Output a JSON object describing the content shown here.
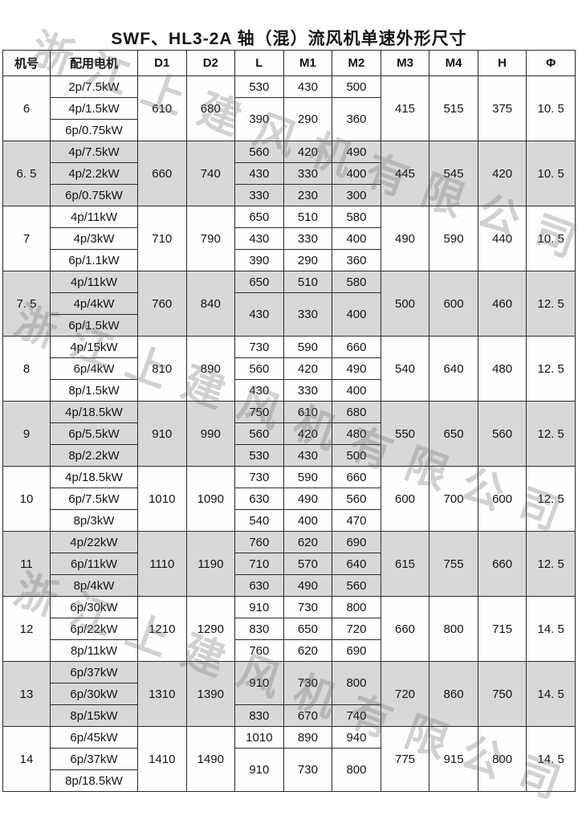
{
  "title": "SWF、HL3-2A 轴（混）流风机单速外形尺寸",
  "watermark": {
    "text": "浙江上建风机有限公司",
    "color": "#bdbdbd"
  },
  "colors": {
    "shaded_row": "#d8d8d8",
    "border": "#2b2b2b",
    "background": "#ffffff"
  },
  "table": {
    "headers": [
      "机号",
      "配用电机",
      "D1",
      "D2",
      "L",
      "M1",
      "M2",
      "M3",
      "M4",
      "H",
      "Φ"
    ],
    "groups": [
      {
        "model": "6",
        "shaded": false,
        "motors": [
          "2p/7.5kW",
          "4p/1.5kW",
          "6p/0.75kW"
        ],
        "d1": "610",
        "d2": "680",
        "lm_rows": [
          {
            "span": 1,
            "l": "530",
            "m1": "430",
            "m2": "500"
          },
          {
            "span": 2,
            "l": "390",
            "m1": "290",
            "m2": "360"
          }
        ],
        "m3": "415",
        "m4": "515",
        "h": "375",
        "phi": "10. 5"
      },
      {
        "model": "6. 5",
        "shaded": true,
        "motors": [
          "4p/7.5kW",
          "4p/2.2kW",
          "6p/0.75kW"
        ],
        "d1": "660",
        "d2": "740",
        "lm_rows": [
          {
            "span": 1,
            "l": "560",
            "m1": "420",
            "m2": "490"
          },
          {
            "span": 1,
            "l": "430",
            "m1": "330",
            "m2": "400"
          },
          {
            "span": 1,
            "l": "330",
            "m1": "230",
            "m2": "300"
          }
        ],
        "m3": "445",
        "m4": "545",
        "h": "420",
        "phi": "10. 5"
      },
      {
        "model": "7",
        "shaded": false,
        "motors": [
          "4p/11kW",
          "4p/3kW",
          "6p/1.1kW"
        ],
        "d1": "710",
        "d2": "790",
        "lm_rows": [
          {
            "span": 1,
            "l": "650",
            "m1": "510",
            "m2": "580"
          },
          {
            "span": 1,
            "l": "430",
            "m1": "330",
            "m2": "400"
          },
          {
            "span": 1,
            "l": "390",
            "m1": "290",
            "m2": "360"
          }
        ],
        "m3": "490",
        "m4": "590",
        "h": "440",
        "phi": "10. 5"
      },
      {
        "model": "7. 5",
        "shaded": true,
        "motors": [
          "4p/11kW",
          "4p/4kW",
          "6p/1.5kW"
        ],
        "d1": "760",
        "d2": "840",
        "lm_rows": [
          {
            "span": 1,
            "l": "650",
            "m1": "510",
            "m2": "580"
          },
          {
            "span": 2,
            "l": "430",
            "m1": "330",
            "m2": "400"
          }
        ],
        "m3": "500",
        "m4": "600",
        "h": "460",
        "phi": "12. 5"
      },
      {
        "model": "8",
        "shaded": false,
        "motors": [
          "4p/15kW",
          "6p/4kW",
          "8p/1.5kW"
        ],
        "d1": "810",
        "d2": "890",
        "lm_rows": [
          {
            "span": 1,
            "l": "730",
            "m1": "590",
            "m2": "660"
          },
          {
            "span": 1,
            "l": "560",
            "m1": "420",
            "m2": "490"
          },
          {
            "span": 1,
            "l": "430",
            "m1": "330",
            "m2": "400"
          }
        ],
        "m3": "540",
        "m4": "640",
        "h": "480",
        "phi": "12. 5"
      },
      {
        "model": "9",
        "shaded": true,
        "motors": [
          "4p/18.5kW",
          "6p/5.5kW",
          "8p/2.2kW"
        ],
        "d1": "910",
        "d2": "990",
        "lm_rows": [
          {
            "span": 1,
            "l": "750",
            "m1": "610",
            "m2": "680"
          },
          {
            "span": 1,
            "l": "560",
            "m1": "420",
            "m2": "480"
          },
          {
            "span": 1,
            "l": "530",
            "m1": "430",
            "m2": "500"
          }
        ],
        "m3": "550",
        "m4": "650",
        "h": "560",
        "phi": "12. 5"
      },
      {
        "model": "10",
        "shaded": false,
        "motors": [
          "4p/18.5kW",
          "6p/7.5kW",
          "8p/3kW"
        ],
        "d1": "1010",
        "d2": "1090",
        "lm_rows": [
          {
            "span": 1,
            "l": "730",
            "m1": "590",
            "m2": "660"
          },
          {
            "span": 1,
            "l": "630",
            "m1": "490",
            "m2": "560"
          },
          {
            "span": 1,
            "l": "540",
            "m1": "400",
            "m2": "470"
          }
        ],
        "m3": "600",
        "m4": "700",
        "h": "600",
        "phi": "12. 5"
      },
      {
        "model": "11",
        "shaded": true,
        "motors": [
          "4p/22kW",
          "6p/11kW",
          "8p/4kW"
        ],
        "d1": "1110",
        "d2": "1190",
        "lm_rows": [
          {
            "span": 1,
            "l": "760",
            "m1": "620",
            "m2": "690"
          },
          {
            "span": 1,
            "l": "710",
            "m1": "570",
            "m2": "640"
          },
          {
            "span": 1,
            "l": "630",
            "m1": "490",
            "m2": "560"
          }
        ],
        "m3": "615",
        "m4": "755",
        "h": "660",
        "phi": "12. 5"
      },
      {
        "model": "12",
        "shaded": false,
        "motors": [
          "6p/30kW",
          "6p/22kW",
          "8p/11kW"
        ],
        "d1": "1210",
        "d2": "1290",
        "lm_rows": [
          {
            "span": 1,
            "l": "910",
            "m1": "730",
            "m2": "800"
          },
          {
            "span": 1,
            "l": "830",
            "m1": "650",
            "m2": "720"
          },
          {
            "span": 1,
            "l": "760",
            "m1": "620",
            "m2": "690"
          }
        ],
        "m3": "660",
        "m4": "800",
        "h": "715",
        "phi": "14. 5"
      },
      {
        "model": "13",
        "shaded": true,
        "motors": [
          "6p/37kW",
          "6p/30kW",
          "8p/15kW"
        ],
        "d1": "1310",
        "d2": "1390",
        "lm_rows": [
          {
            "span": 2,
            "l": "910",
            "m1": "730",
            "m2": "800"
          },
          {
            "span": 1,
            "l": "830",
            "m1": "670",
            "m2": "740"
          }
        ],
        "m3": "720",
        "m4": "860",
        "h": "750",
        "phi": "14. 5"
      },
      {
        "model": "14",
        "shaded": false,
        "motors": [
          "6p/45kW",
          "6p/37kW",
          "8p/18.5kW"
        ],
        "d1": "1410",
        "d2": "1490",
        "lm_rows": [
          {
            "span": 1,
            "l": "1010",
            "m1": "890",
            "m2": "940"
          },
          {
            "span": 2,
            "l": "910",
            "m1": "730",
            "m2": "800"
          }
        ],
        "m3": "775",
        "m4": "915",
        "h": "800",
        "phi": "14. 5"
      }
    ]
  }
}
